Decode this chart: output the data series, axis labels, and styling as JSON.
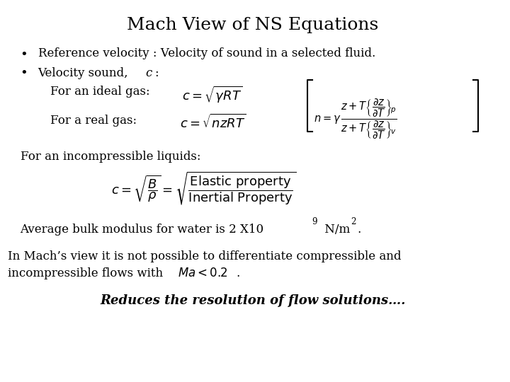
{
  "title": "Mach View of NS Equations",
  "title_fontsize": 18,
  "background_color": "#ffffff",
  "text_color": "#000000",
  "bullet1": "Reference velocity : Velocity of sound in a selected fluid.",
  "bullet2": "Velocity sound, ",
  "bullet2_italic": "c",
  "bullet2_end": ":",
  "label_ideal": "For an ideal gas:",
  "formula_ideal": "$c = \\sqrt{\\gamma RT}$",
  "label_real": "For a real gas:",
  "formula_real": "$c = \\sqrt{nzRT}$",
  "n_formula": "$n = \\gamma$",
  "frac_top_num": "$z + T\\left\\{\\dfrac{\\partial z}{\\partial T}\\right\\}_p$",
  "frac_bot_den": "$z + T\\left\\{\\dfrac{\\partial z}{\\partial T}\\right\\}_v$",
  "label_incomp": "For an incompressible liquids:",
  "formula_incomp": "$c = \\sqrt{\\dfrac{B}{\\rho}} = \\sqrt{\\dfrac{\\text{Elastic property}}{\\text{Inertial Property}}}$",
  "avg_text": "Average bulk modulus for water is 2 X10",
  "avg_sup": "9",
  "avg_end": " N/m",
  "avg_sup2": "2",
  "avg_end2": ".",
  "mach_line1": "In Mach’s view it is not possible to differentiate compressible and",
  "mach_line2_normal": "incompressible flows with ",
  "mach_line2_italic": "Ma<0.2",
  "mach_line2_end": ".",
  "bottom_italic_bold": "Reduces the resolution of flow solutions…."
}
